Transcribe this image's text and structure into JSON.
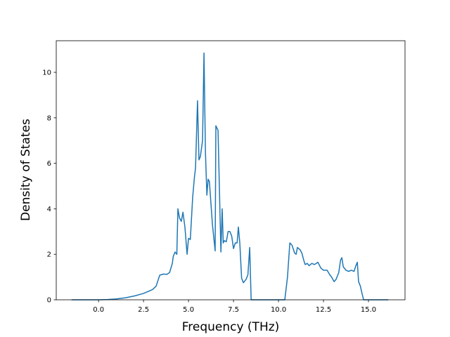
{
  "chart_data": {
    "type": "line",
    "xlabel": "Frequency (THz)",
    "ylabel": "Density of States",
    "x": [
      -1.5,
      -0.5,
      0,
      0.5,
      1,
      1.5,
      2,
      2.5,
      3,
      3.2,
      3.4,
      3.6,
      3.8,
      3.95,
      4.1,
      4.15,
      4.25,
      4.35,
      4.41,
      4.5,
      4.6,
      4.69,
      4.8,
      4.92,
      5.0,
      5.1,
      5.23,
      5.33,
      5.39,
      5.5,
      5.58,
      5.66,
      5.78,
      5.86,
      5.94,
      6.02,
      6.09,
      6.16,
      6.33,
      6.48,
      6.52,
      6.64,
      6.8,
      6.87,
      6.93,
      6.99,
      7.1,
      7.2,
      7.3,
      7.4,
      7.5,
      7.6,
      7.7,
      7.77,
      7.85,
      7.95,
      8.05,
      8.2,
      8.3,
      8.4,
      8.48,
      10.35,
      10.5,
      10.63,
      10.75,
      10.9,
      10.98,
      11.05,
      11.2,
      11.3,
      11.4,
      11.48,
      11.6,
      11.7,
      11.85,
      12.0,
      12.1,
      12.19,
      12.35,
      12.5,
      12.7,
      12.85,
      12.95,
      13.09,
      13.2,
      13.35,
      13.45,
      13.52,
      13.6,
      13.75,
      13.9,
      14.05,
      14.2,
      14.3,
      14.38,
      14.45,
      14.55,
      14.65,
      14.73,
      16.1
    ],
    "values": [
      0,
      0,
      0,
      0.01,
      0.04,
      0.09,
      0.17,
      0.28,
      0.45,
      0.6,
      1.08,
      1.13,
      1.12,
      1.2,
      1.6,
      1.9,
      2.1,
      2.0,
      4.0,
      3.6,
      3.45,
      3.85,
      3.2,
      2.0,
      2.7,
      2.65,
      4.5,
      5.4,
      5.8,
      8.75,
      6.15,
      6.3,
      7.0,
      10.85,
      6.5,
      4.6,
      5.3,
      5.2,
      3.3,
      2.15,
      7.65,
      7.45,
      2.1,
      4.0,
      2.5,
      2.6,
      2.55,
      3.0,
      3.0,
      2.8,
      2.25,
      2.5,
      2.5,
      3.2,
      2.5,
      0.95,
      0.75,
      0.9,
      1.1,
      2.3,
      0,
      0,
      1.0,
      2.5,
      2.4,
      2.05,
      2.0,
      2.3,
      2.2,
      2.05,
      1.75,
      1.55,
      1.6,
      1.5,
      1.6,
      1.55,
      1.6,
      1.65,
      1.4,
      1.3,
      1.3,
      1.1,
      1.0,
      0.8,
      0.9,
      1.2,
      1.75,
      1.85,
      1.45,
      1.3,
      1.25,
      1.3,
      1.25,
      1.5,
      1.65,
      0.8,
      0.6,
      0.25,
      0,
      0
    ],
    "color": "#1f77b4",
    "xlim": [
      -2.35,
      17.03
    ],
    "xticks": [
      {
        "value": 0,
        "label": "0.0"
      },
      2.5,
      {
        "value": 5,
        "label": "5.0"
      },
      7.5,
      {
        "value": 10,
        "label": "10.0"
      },
      12.5,
      {
        "value": 15,
        "label": "15.0"
      }
    ],
    "ylim": [
      0,
      11.39
    ],
    "yticks": [
      0,
      2,
      4,
      6,
      8,
      10
    ],
    "grid": false
  }
}
